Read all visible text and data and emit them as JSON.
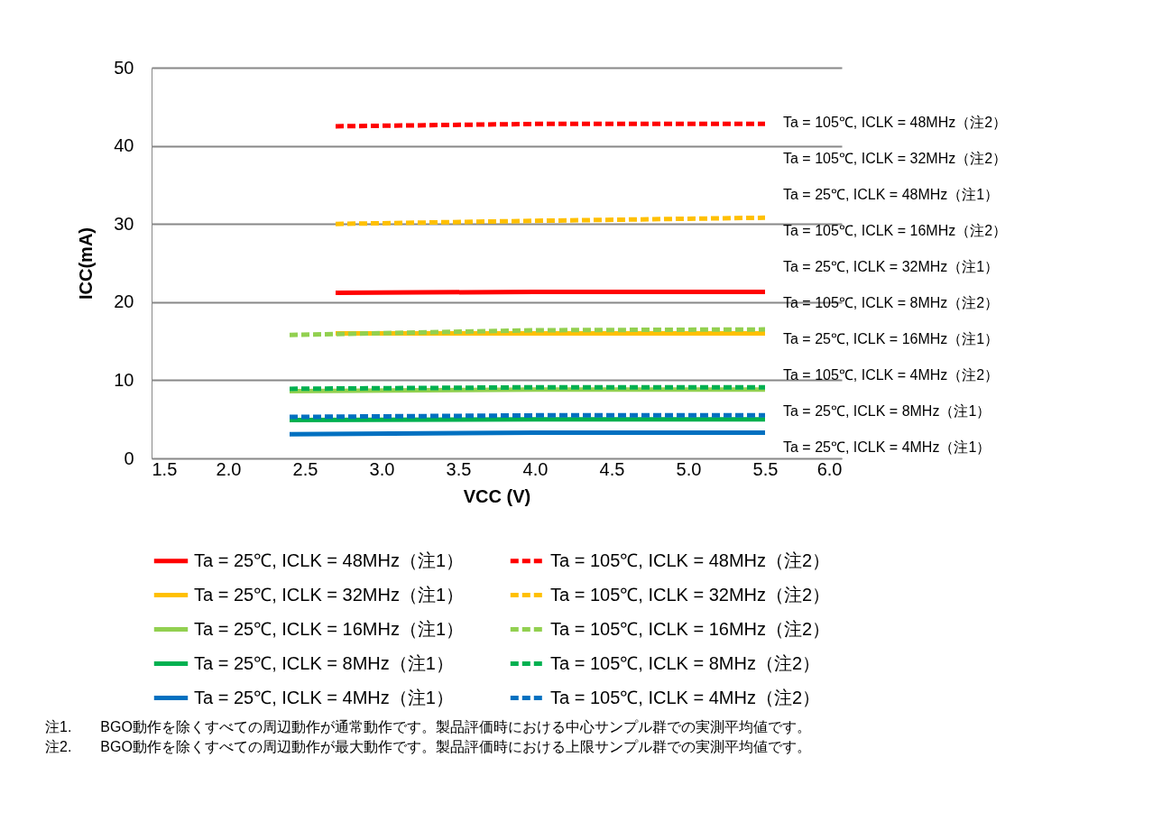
{
  "chart_data": {
    "type": "line",
    "xlabel": "VCC (V)",
    "ylabel": "ICC(mA)",
    "xlim": [
      1.5,
      6.0
    ],
    "xticks": [
      1.5,
      {
        "value": 2,
        "label": "2.0"
      },
      2.5,
      {
        "value": 3,
        "label": "3.0"
      },
      3.5,
      {
        "value": 4,
        "label": "4.0"
      },
      4.5,
      {
        "value": 5,
        "label": "5.0"
      },
      5.5,
      {
        "value": 6,
        "label": "6.0"
      }
    ],
    "ylim": [
      0,
      50
    ],
    "yticks": [
      0,
      10,
      20,
      30,
      40,
      50
    ],
    "grid": "y",
    "legend": "bottom",
    "marker": "none",
    "series": [
      {
        "name": "Ta = 25℃, ICLK = 48MHz（注1）",
        "color": "#ff0000",
        "line_style": "solid",
        "x": [
          2.7,
          4.0,
          5.5
        ],
        "values": [
          21.2,
          21.3,
          21.3
        ]
      },
      {
        "name": "Ta = 25℃, ICLK = 32MHz（注1）",
        "color": "#ffc000",
        "line_style": "solid",
        "x": [
          2.7,
          4.0,
          5.5
        ],
        "values": [
          16.0,
          16.0,
          16.0
        ]
      },
      {
        "name": "Ta = 25℃, ICLK = 16MHz（注1）",
        "color": "#92d050",
        "line_style": "solid",
        "x": [
          2.4,
          4.0,
          5.5
        ],
        "values": [
          8.6,
          8.8,
          8.8
        ]
      },
      {
        "name": "Ta = 25℃, ICLK = 8MHz（注1）",
        "color": "#00b050",
        "line_style": "solid",
        "x": [
          2.4,
          4.0,
          5.5
        ],
        "values": [
          4.9,
          5.0,
          5.0
        ]
      },
      {
        "name": "Ta = 25℃, ICLK = 4MHz（注1）",
        "color": "#0070c0",
        "line_style": "solid",
        "x": [
          2.4,
          4.0,
          5.5
        ],
        "values": [
          3.1,
          3.3,
          3.3
        ]
      },
      {
        "name": "Ta = 105℃, ICLK = 48MHz（注2）",
        "color": "#ff0000",
        "line_style": "dashed",
        "x": [
          2.7,
          4.0,
          5.5
        ],
        "values": [
          42.5,
          42.8,
          42.8
        ]
      },
      {
        "name": "Ta = 105℃, ICLK = 32MHz（注2）",
        "color": "#ffc000",
        "line_style": "dashed",
        "x": [
          2.7,
          4.0,
          5.5
        ],
        "values": [
          30.0,
          30.4,
          30.8
        ]
      },
      {
        "name": "Ta = 105℃, ICLK = 16MHz（注2）",
        "color": "#92d050",
        "line_style": "dashed",
        "x": [
          2.4,
          4.0,
          5.5
        ],
        "values": [
          15.8,
          16.4,
          16.5
        ]
      },
      {
        "name": "Ta = 105℃, ICLK = 8MHz（注2）",
        "color": "#00b050",
        "line_style": "dashed",
        "x": [
          2.4,
          4.0,
          5.5
        ],
        "values": [
          8.9,
          9.1,
          9.1
        ]
      },
      {
        "name": "Ta = 105℃, ICLK = 4MHz（注2）",
        "color": "#0070c0",
        "line_style": "dashed",
        "x": [
          2.4,
          4.0,
          5.5
        ],
        "values": [
          5.3,
          5.5,
          5.5
        ]
      }
    ],
    "annotations": [
      "Ta = 105℃, ICLK = 48MHz（注2）",
      "Ta = 105℃, ICLK = 32MHz（注2）",
      "Ta = 25℃, ICLK = 48MHz（注1）",
      "Ta = 105℃, ICLK = 16MHz（注2）",
      "Ta = 25℃, ICLK = 32MHz（注1）",
      "Ta = 105℃, ICLK = 8MHz（注2）",
      "Ta = 25℃, ICLK = 16MHz（注1）",
      "Ta = 105℃, ICLK = 4MHz（注2）",
      "Ta = 25℃, ICLK = 8MHz（注1）",
      "Ta = 25℃, ICLK = 4MHz（注1）",
      "注1.　　BGO動作を除くすべての周辺動作が通常動作です。製品評価時における中心サンプル群での実測平均値です。",
      "注2.　　BGO動作を除くすべての周辺動作が最大動作です。製品評価時における上限サンプル群での実測平均値です。"
    ]
  }
}
